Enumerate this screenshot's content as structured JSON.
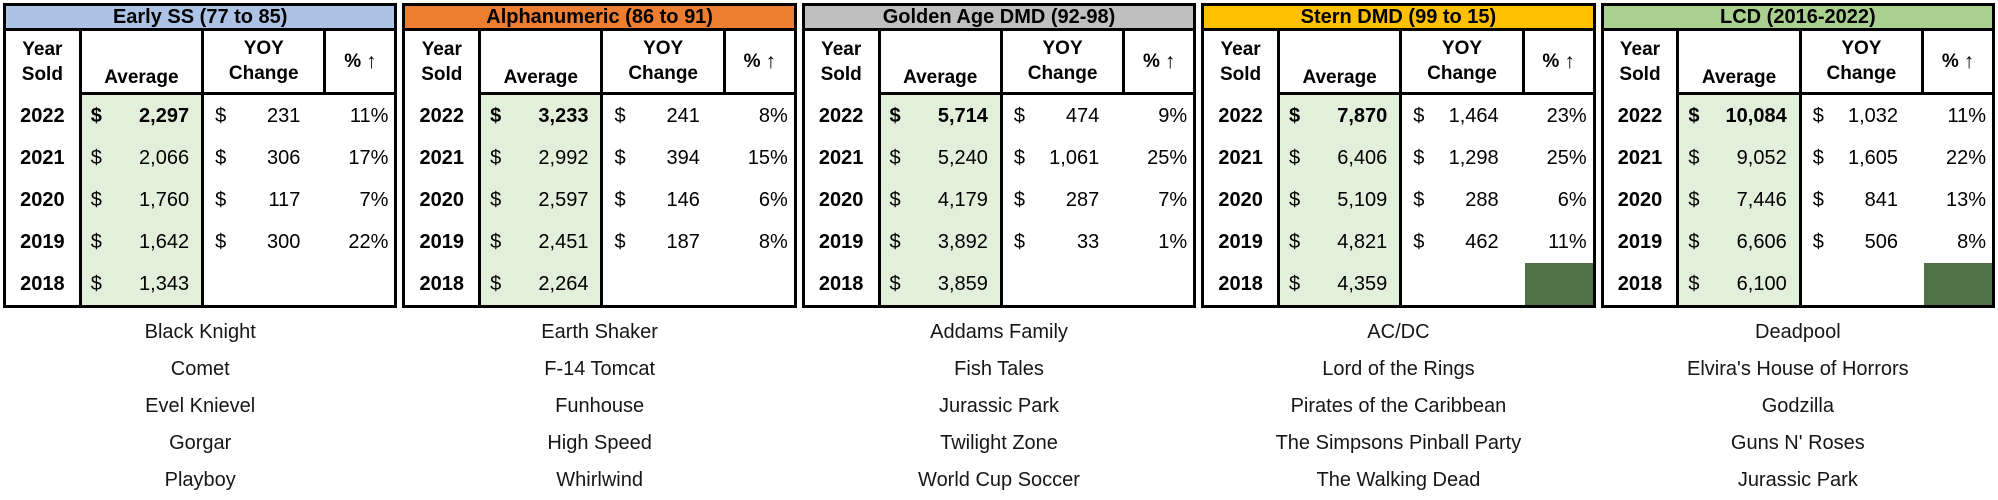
{
  "columns": {
    "year": "Year\nSold",
    "average": "Average",
    "yoy": "YOY\nChange",
    "pct_percent": "%",
    "pct_arrow": "↑"
  },
  "colors": {
    "average_fill": "#E2EFDA",
    "dark_cell": "#4E7245",
    "border": "#000000"
  },
  "sections": [
    {
      "title": "Early SS (77 to 85)",
      "header_color": "#ADC3E5",
      "rows": [
        {
          "year": "2022",
          "avg_cur": "$",
          "avg": "2,297",
          "yoy_cur": "$",
          "yoy": "231",
          "pct": "11%",
          "avg_bold": true
        },
        {
          "year": "2021",
          "avg_cur": "$",
          "avg": "2,066",
          "yoy_cur": "$",
          "yoy": "306",
          "pct": "17%"
        },
        {
          "year": "2020",
          "avg_cur": "$",
          "avg": "1,760",
          "yoy_cur": "$",
          "yoy": "117",
          "pct": "7%"
        },
        {
          "year": "2019",
          "avg_cur": "$",
          "avg": "1,642",
          "yoy_cur": "$",
          "yoy": "300",
          "pct": "22%"
        },
        {
          "year": "2018",
          "avg_cur": "$",
          "avg": "1,343",
          "yoy_cur": "",
          "yoy": "",
          "pct": ""
        }
      ],
      "examples": [
        "Black Knight",
        "Comet",
        "Evel Knievel",
        "Gorgar",
        "Playboy"
      ]
    },
    {
      "title": "Alphanumeric (86 to 91)",
      "header_color": "#ED7D31",
      "rows": [
        {
          "year": "2022",
          "avg_cur": "$",
          "avg": "3,233",
          "yoy_cur": "$",
          "yoy": "241",
          "pct": "8%",
          "avg_bold": true
        },
        {
          "year": "2021",
          "avg_cur": "$",
          "avg": "2,992",
          "yoy_cur": "$",
          "yoy": "394",
          "pct": "15%"
        },
        {
          "year": "2020",
          "avg_cur": "$",
          "avg": "2,597",
          "yoy_cur": "$",
          "yoy": "146",
          "pct": "6%"
        },
        {
          "year": "2019",
          "avg_cur": "$",
          "avg": "2,451",
          "yoy_cur": "$",
          "yoy": "187",
          "pct": "8%"
        },
        {
          "year": "2018",
          "avg_cur": "$",
          "avg": "2,264",
          "yoy_cur": "",
          "yoy": "",
          "pct": ""
        }
      ],
      "examples": [
        "Earth Shaker",
        "F-14 Tomcat",
        "Funhouse",
        "High Speed",
        "Whirlwind"
      ]
    },
    {
      "title": "Golden Age DMD (92-98)",
      "header_color": "#BFBFBF",
      "rows": [
        {
          "year": "2022",
          "avg_cur": "$",
          "avg": "5,714",
          "yoy_cur": "$",
          "yoy": "474",
          "pct": "9%",
          "avg_bold": true
        },
        {
          "year": "2021",
          "avg_cur": "$",
          "avg": "5,240",
          "yoy_cur": "$",
          "yoy": "1,061",
          "pct": "25%"
        },
        {
          "year": "2020",
          "avg_cur": "$",
          "avg": "4,179",
          "yoy_cur": "$",
          "yoy": "287",
          "pct": "7%"
        },
        {
          "year": "2019",
          "avg_cur": "$",
          "avg": "3,892",
          "yoy_cur": "$",
          "yoy": "33",
          "pct": "1%"
        },
        {
          "year": "2018",
          "avg_cur": "$",
          "avg": "3,859",
          "yoy_cur": "",
          "yoy": "",
          "pct": ""
        }
      ],
      "examples": [
        "Addams Family",
        "Fish Tales",
        "Jurassic Park",
        "Twilight Zone",
        "World Cup Soccer"
      ]
    },
    {
      "title": "Stern DMD (99 to 15)",
      "header_color": "#FFC000",
      "rows": [
        {
          "year": "2022",
          "avg_cur": "$",
          "avg": "7,870",
          "yoy_cur": "$",
          "yoy": "1,464",
          "pct": "23%",
          "avg_bold": true
        },
        {
          "year": "2021",
          "avg_cur": "$",
          "avg": "6,406",
          "yoy_cur": "$",
          "yoy": "1,298",
          "pct": "25%"
        },
        {
          "year": "2020",
          "avg_cur": "$",
          "avg": "5,109",
          "yoy_cur": "$",
          "yoy": "288",
          "pct": "6%"
        },
        {
          "year": "2019",
          "avg_cur": "$",
          "avg": "4,821",
          "yoy_cur": "$",
          "yoy": "462",
          "pct": "11%"
        },
        {
          "year": "2018",
          "avg_cur": "$",
          "avg": "4,359",
          "yoy_cur": "",
          "yoy": "",
          "pct": "",
          "pct_dark": true
        }
      ],
      "examples": [
        "AC/DC",
        "Lord of the Rings",
        "Pirates of the Caribbean",
        "The Simpsons Pinball Party",
        "The Walking Dead"
      ]
    },
    {
      "title": "LCD (2016-2022)",
      "header_color": "#A9D08E",
      "rows": [
        {
          "year": "2022",
          "avg_cur": "$",
          "avg": "10,084",
          "yoy_cur": "$",
          "yoy": "1,032",
          "pct": "11%",
          "avg_bold": true
        },
        {
          "year": "2021",
          "avg_cur": "$",
          "avg": "9,052",
          "yoy_cur": "$",
          "yoy": "1,605",
          "pct": "22%"
        },
        {
          "year": "2020",
          "avg_cur": "$",
          "avg": "7,446",
          "yoy_cur": "$",
          "yoy": "841",
          "pct": "13%"
        },
        {
          "year": "2019",
          "avg_cur": "$",
          "avg": "6,606",
          "yoy_cur": "$",
          "yoy": "506",
          "pct": "8%"
        },
        {
          "year": "2018",
          "avg_cur": "$",
          "avg": "6,100",
          "yoy_cur": "",
          "yoy": "",
          "pct": "",
          "pct_dark": true
        }
      ],
      "examples": [
        "Deadpool",
        "Elvira's House of Horrors",
        "Godzilla",
        "Guns N' Roses",
        "Jurassic Park"
      ]
    }
  ]
}
